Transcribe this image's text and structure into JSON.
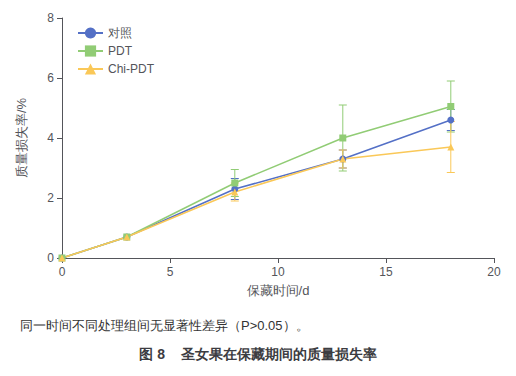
{
  "chart_data": {
    "type": "line",
    "title": "图 8    圣女果在保藏期间的质量损失率",
    "annotations": [
      "同一时间不同处理组间无显著性差异（P>0.05）。"
    ],
    "x_label": "保藏时间/d",
    "y_label": "质量损失率/%",
    "x": [
      0,
      3,
      8,
      13,
      18
    ],
    "series": [
      {
        "name": "对照",
        "marker": "circle",
        "values": [
          0,
          0.7,
          2.3,
          3.3,
          4.6
        ],
        "errors": [
          0,
          0,
          0.35,
          0.3,
          0.35
        ]
      },
      {
        "name": "PDT",
        "marker": "square",
        "values": [
          0,
          0.7,
          2.5,
          4.0,
          5.05
        ],
        "errors": [
          0,
          0,
          0.45,
          1.1,
          0.85
        ]
      },
      {
        "name": "Chi-PDT",
        "marker": "triangle",
        "values": [
          0,
          0.7,
          2.2,
          3.3,
          3.7
        ],
        "errors": [
          0,
          0,
          0.3,
          0.3,
          0.85
        ]
      }
    ],
    "xlim": [
      0,
      20
    ],
    "ylim": [
      0,
      8
    ],
    "xticks": [
      0,
      5,
      10,
      15,
      20
    ],
    "yticks": [
      0,
      2,
      4,
      6,
      8
    ],
    "grid": false,
    "legend": "upper left"
  }
}
